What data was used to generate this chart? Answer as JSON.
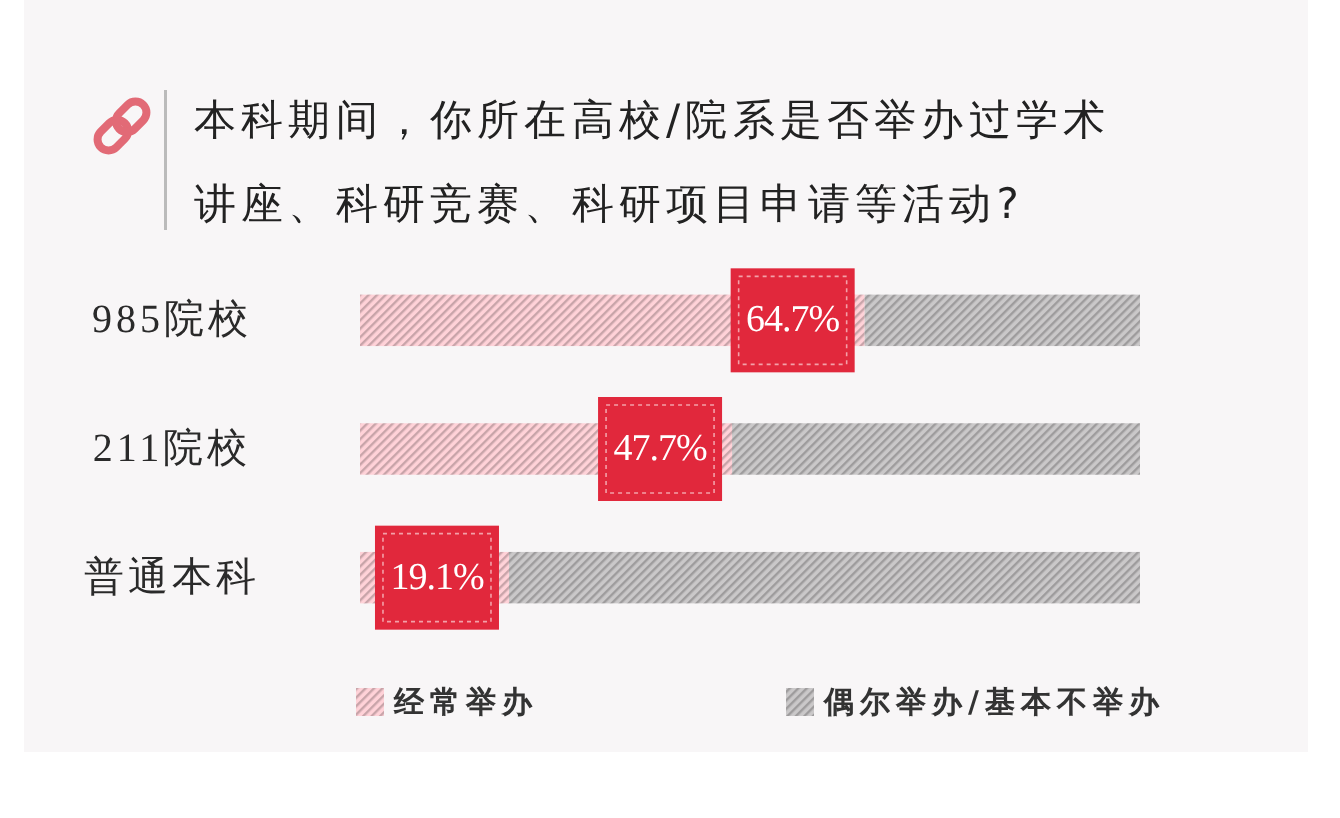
{
  "chart_data": {
    "type": "bar",
    "orientation": "horizontal",
    "stacked": true,
    "title": "本科期间，你所在高校/院系是否举办过学术讲座、科研竞赛、科研项目申请等活动?",
    "categories": [
      "985院校",
      "211院校",
      "普通本科"
    ],
    "series": [
      {
        "name": "经常举办",
        "color": "#ebc0c6",
        "values": [
          64.7,
          47.7,
          19.1
        ],
        "value_labels": [
          "64.7%",
          "47.7%",
          "19.1%"
        ]
      },
      {
        "name": "偶尔举办/基本不举办",
        "color": "#b9b7b8",
        "values": [
          35.3,
          52.3,
          80.9
        ]
      }
    ],
    "xlim": [
      0,
      100
    ],
    "legend": "bottom"
  }
}
